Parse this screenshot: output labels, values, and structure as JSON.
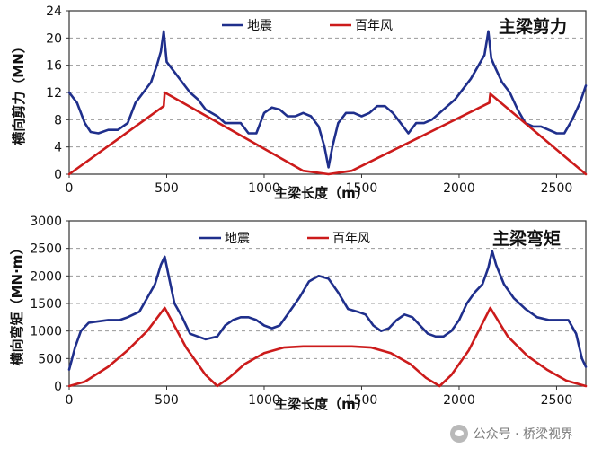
{
  "chart_data": [
    {
      "type": "line",
      "title": "主梁剪力",
      "xlabel": "主梁长度（m）",
      "ylabel": "横向剪力（MN）",
      "xlim": [
        0,
        2650
      ],
      "ylim": [
        0,
        24
      ],
      "xticks": [
        0,
        500,
        1000,
        1500,
        2000,
        2500
      ],
      "yticks": [
        0,
        4,
        8,
        12,
        16,
        20,
        24
      ],
      "grid": true,
      "legend": "top-center",
      "series": [
        {
          "name": "地震",
          "color": "#1f2f8c",
          "x": [
            0,
            40,
            80,
            110,
            150,
            200,
            250,
            300,
            340,
            380,
            420,
            450,
            470,
            485,
            500,
            540,
            580,
            620,
            660,
            700,
            760,
            800,
            840,
            880,
            920,
            960,
            1000,
            1040,
            1080,
            1120,
            1160,
            1200,
            1240,
            1280,
            1310,
            1330,
            1350,
            1380,
            1420,
            1460,
            1500,
            1540,
            1580,
            1620,
            1660,
            1700,
            1740,
            1780,
            1820,
            1860,
            1900,
            1940,
            1980,
            2020,
            2060,
            2100,
            2130,
            2150,
            2165,
            2180,
            2220,
            2260,
            2300,
            2340,
            2380,
            2420,
            2460,
            2500,
            2540,
            2580,
            2620,
            2650
          ],
          "values": [
            12,
            10.5,
            7.5,
            6.2,
            6.0,
            6.5,
            6.5,
            7.5,
            10.5,
            12,
            13.5,
            16,
            18,
            21,
            16.5,
            15,
            13.5,
            12,
            11,
            9.5,
            8.5,
            7.5,
            7.5,
            7.5,
            6.0,
            6.0,
            9.0,
            9.8,
            9.5,
            8.5,
            8.5,
            9.0,
            8.5,
            7.0,
            4.0,
            1.0,
            4.0,
            7.5,
            9.0,
            9.0,
            8.5,
            9.0,
            10.0,
            10.0,
            9.0,
            7.5,
            6.0,
            7.5,
            7.5,
            8.0,
            9.0,
            10.0,
            11.0,
            12.5,
            14.0,
            16.0,
            17.5,
            21.0,
            17.0,
            16.0,
            13.5,
            12.0,
            9.5,
            7.5,
            7.0,
            7.0,
            6.5,
            6.0,
            6.0,
            8.0,
            10.5,
            13.0
          ]
        },
        {
          "name": "百年风",
          "color": "#cc1b1b",
          "x": [
            0,
            485,
            490,
            1200,
            1330,
            1450,
            2155,
            2160,
            2650
          ],
          "values": [
            0,
            10,
            12,
            0.5,
            0,
            0.5,
            10.5,
            11.8,
            0
          ]
        }
      ]
    },
    {
      "type": "line",
      "title": "主梁弯矩",
      "xlabel": "主梁长度（m）",
      "ylabel": "横向弯矩（MN·m）",
      "xlim": [
        0,
        2650
      ],
      "ylim": [
        0,
        3000
      ],
      "xticks": [
        0,
        500,
        1000,
        1500,
        2000,
        2500
      ],
      "yticks": [
        0,
        500,
        1000,
        1500,
        2000,
        2500,
        3000
      ],
      "grid": true,
      "legend": "top-center",
      "series": [
        {
          "name": "地震",
          "color": "#1f2f8c",
          "x": [
            0,
            30,
            60,
            100,
            140,
            200,
            260,
            300,
            360,
            400,
            440,
            470,
            490,
            510,
            540,
            580,
            620,
            660,
            700,
            760,
            800,
            840,
            880,
            920,
            960,
            1000,
            1040,
            1080,
            1120,
            1180,
            1230,
            1280,
            1330,
            1380,
            1430,
            1480,
            1520,
            1560,
            1600,
            1640,
            1680,
            1720,
            1760,
            1800,
            1840,
            1880,
            1920,
            1960,
            2000,
            2040,
            2080,
            2120,
            2150,
            2170,
            2190,
            2230,
            2280,
            2340,
            2400,
            2460,
            2520,
            2560,
            2600,
            2630,
            2650
          ],
          "values": [
            300,
            700,
            1000,
            1150,
            1170,
            1200,
            1200,
            1250,
            1350,
            1600,
            1850,
            2200,
            2350,
            2000,
            1500,
            1250,
            950,
            900,
            850,
            900,
            1100,
            1200,
            1250,
            1250,
            1200,
            1100,
            1050,
            1100,
            1300,
            1600,
            1900,
            2000,
            1950,
            1700,
            1400,
            1350,
            1300,
            1100,
            1000,
            1050,
            1200,
            1300,
            1250,
            1100,
            950,
            900,
            900,
            1000,
            1200,
            1500,
            1700,
            1850,
            2150,
            2450,
            2200,
            1850,
            1600,
            1400,
            1250,
            1200,
            1200,
            1200,
            950,
            500,
            350
          ]
        },
        {
          "name": "百年风",
          "color": "#cc1b1b",
          "x": [
            0,
            80,
            200,
            300,
            400,
            490,
            600,
            700,
            760,
            820,
            900,
            1000,
            1100,
            1200,
            1330,
            1450,
            1550,
            1650,
            1750,
            1830,
            1900,
            1960,
            2050,
            2160,
            2250,
            2350,
            2450,
            2550,
            2650
          ],
          "values": [
            0,
            80,
            350,
            650,
            1000,
            1420,
            700,
            200,
            0,
            150,
            400,
            600,
            700,
            720,
            720,
            720,
            700,
            600,
            400,
            150,
            0,
            200,
            650,
            1420,
            900,
            550,
            300,
            100,
            0
          ]
        }
      ]
    }
  ],
  "watermark": "公众号 · 桥梁视界"
}
